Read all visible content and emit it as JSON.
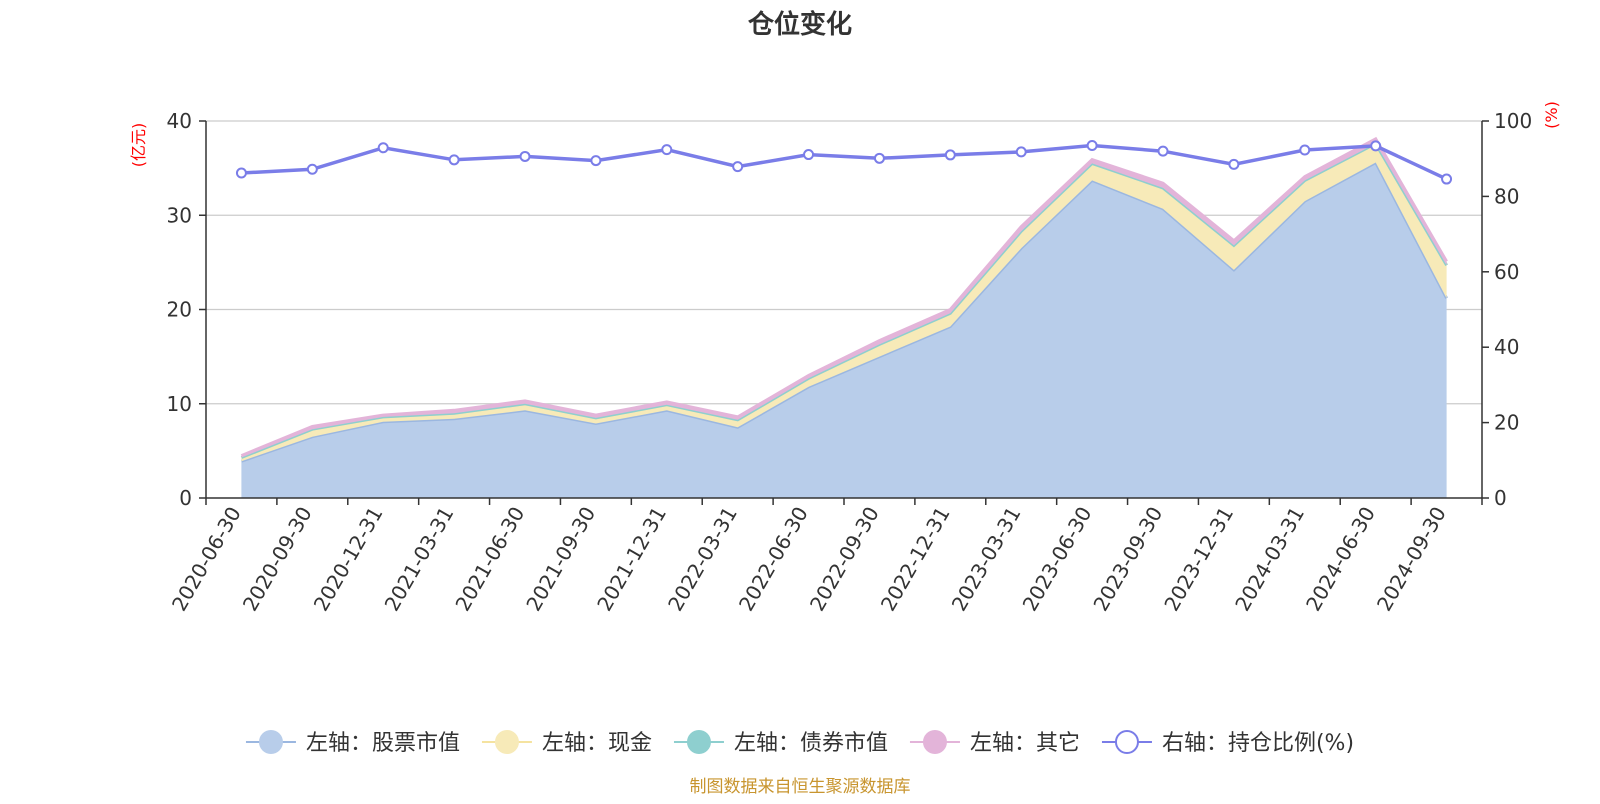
{
  "chart_data": {
    "type": "area",
    "title": "仓位变化",
    "left_axis": {
      "unit": "(亿元)",
      "range": [
        0,
        40
      ],
      "ticks": [
        "0",
        "10",
        "20",
        "30",
        "40"
      ]
    },
    "right_axis": {
      "unit": "(%)",
      "range": [
        0,
        100
      ],
      "ticks": [
        "0",
        "20",
        "40",
        "60",
        "80",
        "100"
      ]
    },
    "categories": [
      "2020-06-30",
      "2020-09-30",
      "2020-12-31",
      "2021-03-31",
      "2021-06-30",
      "2021-09-30",
      "2021-12-31",
      "2022-03-31",
      "2022-06-30",
      "2022-09-30",
      "2022-12-31",
      "2023-03-31",
      "2023-06-30",
      "2023-09-30",
      "2023-12-31",
      "2024-03-31",
      "2024-06-30",
      "2024-09-30"
    ],
    "series": [
      {
        "name": "左轴：股票市值",
        "axis": "left",
        "stack": true,
        "color": "#9bb7e0",
        "fill": "#b8cdea",
        "values": [
          3.9,
          6.5,
          8.1,
          8.4,
          9.3,
          7.9,
          9.3,
          7.5,
          11.8,
          15.0,
          18.2,
          26.5,
          33.7,
          30.7,
          24.2,
          31.5,
          35.6,
          21.2
        ]
      },
      {
        "name": "左轴：现金",
        "axis": "left",
        "stack": true,
        "color": "#f5e3a0",
        "fill": "#f7eab8",
        "values": [
          0.4,
          0.8,
          0.5,
          0.6,
          0.7,
          0.6,
          0.6,
          0.8,
          0.9,
          1.3,
          1.4,
          1.8,
          1.8,
          2.2,
          2.6,
          2.2,
          2.0,
          3.5
        ]
      },
      {
        "name": "左轴：债券市值",
        "axis": "left",
        "stack": true,
        "color": "#8ecfcf",
        "fill": "#8ecfcf",
        "values": [
          0,
          0,
          0,
          0,
          0,
          0,
          0,
          0,
          0,
          0,
          0,
          0,
          0,
          0,
          0,
          0,
          0,
          0
        ]
      },
      {
        "name": "左轴：其它",
        "axis": "left",
        "stack": true,
        "color": "#e3b4d9",
        "fill": "#e3b4d9",
        "values": [
          0.2,
          0.3,
          0.2,
          0.3,
          0.3,
          0.3,
          0.3,
          0.3,
          0.3,
          0.4,
          0.4,
          0.5,
          0.4,
          0.5,
          0.5,
          0.4,
          0.5,
          0.4
        ]
      },
      {
        "name": "右轴：持仓比例(%)",
        "axis": "right",
        "type": "line",
        "color": "#7a7de8",
        "values": [
          86.2,
          87.2,
          92.9,
          89.7,
          90.6,
          89.5,
          92.4,
          87.9,
          91.1,
          90.1,
          91.0,
          91.8,
          93.5,
          92.0,
          88.5,
          92.3,
          93.4,
          84.6
        ]
      }
    ],
    "legend_position": "bottom",
    "grid": true
  },
  "source": "制图数据来自恒生聚源数据库"
}
